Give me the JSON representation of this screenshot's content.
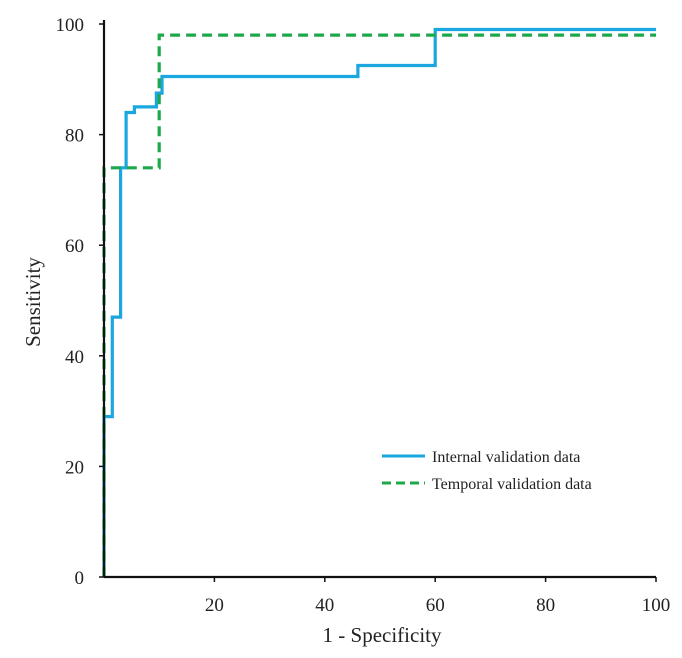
{
  "chart_data": {
    "type": "line",
    "title": "",
    "xlabel": "1 - Specificity",
    "ylabel": "Sensitivity",
    "xlim": [
      0,
      100
    ],
    "ylim": [
      0,
      100
    ],
    "xticks": [
      20,
      40,
      60,
      80,
      100
    ],
    "yticks": [
      0,
      20,
      40,
      60,
      80,
      100
    ],
    "grid": false,
    "legend_position": "lower-right",
    "series": [
      {
        "name": "Internal validation data",
        "color": "#1aa7e0",
        "dash": "solid",
        "x": [
          0,
          0,
          1.5,
          1.5,
          3,
          3,
          4,
          4,
          5.5,
          5.5,
          9.5,
          9.5,
          10.5,
          10.5,
          14,
          14,
          46,
          46,
          60,
          60,
          100
        ],
        "y": [
          0,
          29,
          29,
          47,
          47,
          74,
          74,
          84,
          84,
          85,
          85,
          87.5,
          87.5,
          90.5,
          90.5,
          90.5,
          90.5,
          92.5,
          92.5,
          99,
          99
        ]
      },
      {
        "name": "Temporal validation data",
        "color": "#1fa84a",
        "dash": "dashed",
        "x": [
          0,
          0,
          10,
          10,
          60,
          60,
          100
        ],
        "y": [
          0,
          74,
          74,
          98,
          98,
          98,
          98
        ]
      }
    ]
  }
}
